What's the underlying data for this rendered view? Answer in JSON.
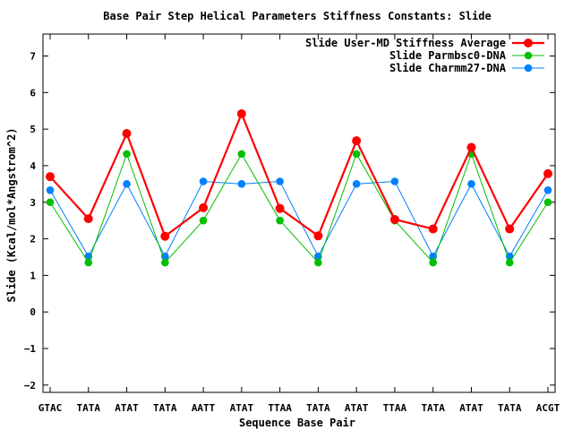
{
  "chart_data": {
    "type": "line",
    "title": "Base Pair Step Helical Parameters Stiffness Constants: Slide",
    "xlabel": "Sequence Base Pair",
    "ylabel": "Slide (Kcal/mol*Angstrom^2)",
    "categories": [
      "GTAC",
      "TATA",
      "ATAT",
      "TATA",
      "AATT",
      "ATAT",
      "TTAA",
      "TATA",
      "ATAT",
      "TTAA",
      "TATA",
      "ATAT",
      "TATA",
      "ACGT"
    ],
    "y_ticks": [
      -2,
      -1,
      0,
      1,
      2,
      3,
      4,
      5,
      6,
      7
    ],
    "ylim": [
      -2.2,
      7.6
    ],
    "legend_position": "top-right",
    "grid": false,
    "series": [
      {
        "name": "Slide User-MD Stiffness Average",
        "color": "#ff0000",
        "values": [
          3.7,
          2.55,
          4.88,
          2.07,
          2.85,
          5.42,
          2.83,
          2.08,
          4.68,
          2.53,
          2.27,
          4.5,
          2.27,
          3.78
        ]
      },
      {
        "name": "Slide Parmbsc0-DNA",
        "color": "#00c000",
        "values": [
          3.0,
          1.35,
          4.32,
          1.35,
          2.5,
          4.32,
          2.5,
          1.35,
          4.32,
          2.5,
          1.35,
          4.32,
          1.35,
          3.0
        ]
      },
      {
        "name": "Slide Charmm27-DNA",
        "color": "#0080ff",
        "values": [
          3.33,
          1.52,
          3.5,
          1.52,
          3.57,
          3.5,
          3.57,
          1.52,
          3.5,
          3.57,
          1.52,
          3.5,
          1.52,
          3.33
        ]
      }
    ]
  }
}
